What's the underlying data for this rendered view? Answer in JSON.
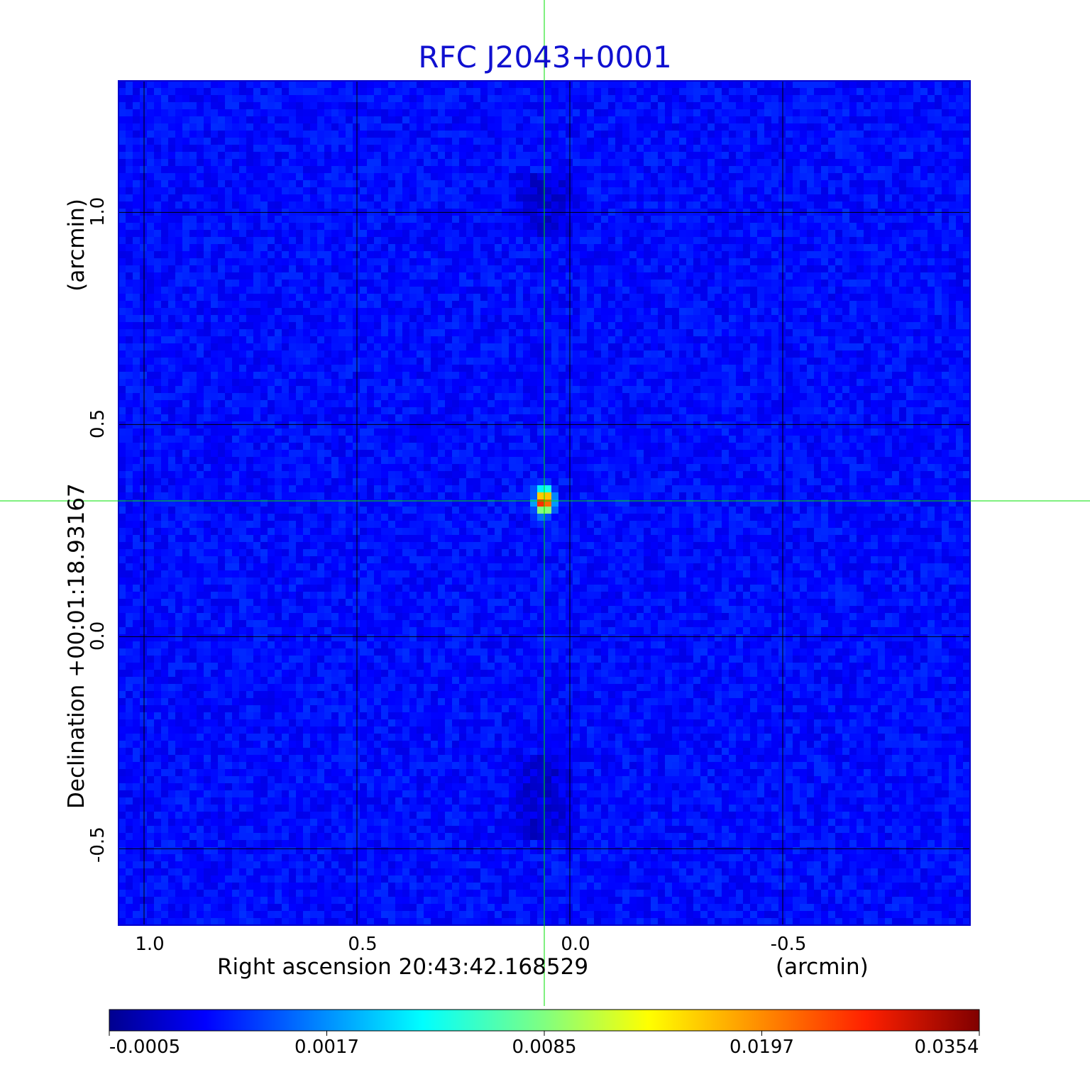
{
  "chart_data": {
    "type": "heatmap",
    "title": "RFC J2043+0001",
    "xlabel": "Right ascension  20:43:42.168529",
    "xunit": "(arcmin)",
    "ylabel": "Declination  +00:01:18.93167",
    "yunit": "(arcmin)",
    "x_ticks": [
      "1.0",
      "0.5",
      "0.0",
      "-0.5"
    ],
    "x_tick_values": [
      1.0,
      0.5,
      0.0,
      -0.5
    ],
    "y_ticks": [
      "1.0",
      "0.5",
      "0.0",
      "-0.5"
    ],
    "y_tick_values": [
      1.0,
      0.5,
      0.0,
      -0.5
    ],
    "xlim": [
      1.06,
      -0.94
    ],
    "ylim": [
      -0.68,
      1.31
    ],
    "grid": true,
    "crosshair": {
      "x": 0.06,
      "y": 0.32
    },
    "peak": {
      "x": 0.06,
      "y": 0.32,
      "value": 0.0354
    },
    "colorbar": {
      "colormap": "jet",
      "tick_labels": [
        "-0.0005",
        "0.0017",
        "0.0085",
        "0.0197",
        "0.0354"
      ],
      "min": -0.0005,
      "max": 0.0354
    },
    "colors": {
      "title": "#1010d0",
      "crosshair": "#00e000",
      "frame": "#0000cc",
      "background_noise": "#1a40f0"
    }
  }
}
